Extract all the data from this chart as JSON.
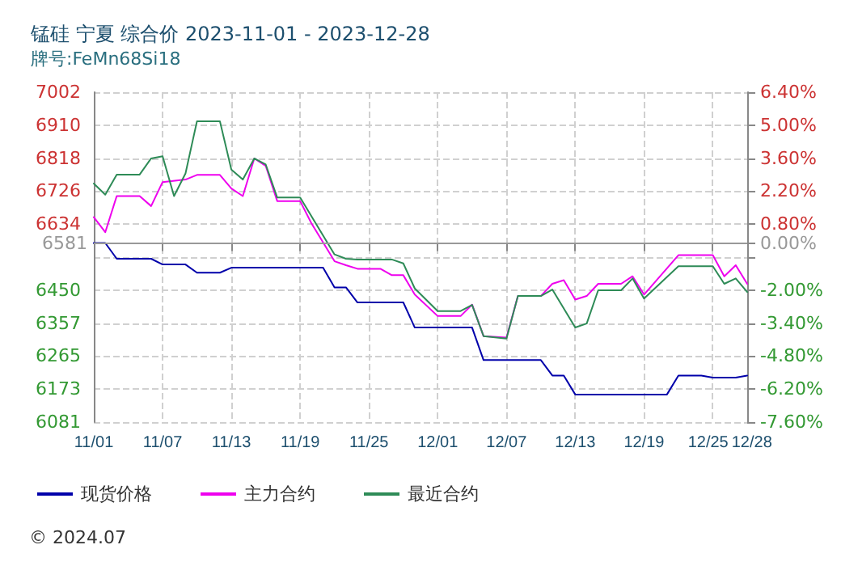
{
  "chart_data": {
    "type": "line",
    "title": "锰硅 宁夏 综合价 2023-11-01 - 2023-12-28",
    "subtitle": "牌号:FeMn68Si18",
    "annotations": [
      "© 2024.07"
    ],
    "xlim": [
      "2023-11-01",
      "2023-12-28"
    ],
    "xticks": [
      {
        "value": "2023-11-01",
        "label": "11/01"
      },
      {
        "value": "2023-11-07",
        "label": "11/07"
      },
      {
        "value": "2023-11-13",
        "label": "11/13"
      },
      {
        "value": "2023-11-19",
        "label": "11/19"
      },
      {
        "value": "2023-11-25",
        "label": "11/25"
      },
      {
        "value": "2023-12-01",
        "label": "12/01"
      },
      {
        "value": "2023-12-07",
        "label": "12/07"
      },
      {
        "value": "2023-12-13",
        "label": "12/13"
      },
      {
        "value": "2023-12-19",
        "label": "12/19"
      },
      {
        "value": "2023-12-25",
        "label": "12/25"
      },
      {
        "value": "2023-12-28",
        "label": "12/28"
      }
    ],
    "ylim": [
      6081,
      7002
    ],
    "yticks": [
      7002,
      6910,
      6818,
      6726,
      6634,
      {
        "value": 6542,
        "label": null
      },
      6450,
      6357,
      6265,
      6173,
      6081
    ],
    "y2lim": [
      -7.6,
      6.4
    ],
    "y2ticks": [
      {
        "value": 6.4,
        "label": "6.40%"
      },
      {
        "value": 5,
        "label": "5.00%"
      },
      {
        "value": 3.6,
        "label": "3.60%"
      },
      {
        "value": 2.2,
        "label": "2.20%"
      },
      {
        "value": 0.8,
        "label": "0.80%"
      },
      {
        "value": 0,
        "label": "0.00%"
      },
      {
        "value": -0.6,
        "label": null
      },
      {
        "value": -2,
        "label": "-2.00%"
      },
      {
        "value": -3.4,
        "label": "-3.40%"
      },
      {
        "value": -4.8,
        "label": "-4.80%"
      },
      {
        "value": -6.2,
        "label": "-6.20%"
      },
      {
        "value": -7.6,
        "label": "-7.60%"
      }
    ],
    "ref_lines": [
      {
        "axis": "y",
        "value": 6581,
        "label": "6581",
        "color": "#999999"
      }
    ],
    "grid": true,
    "legend": "bottom",
    "marker": "none",
    "line_style": "solid",
    "series": [
      {
        "name": "现货价格",
        "color": "#0000aa",
        "x": [
          "2023-11-01",
          "2023-11-02",
          "2023-11-03",
          "2023-11-06",
          "2023-11-07",
          "2023-11-09",
          "2023-11-10",
          "2023-11-12",
          "2023-11-13",
          "2023-11-21",
          "2023-11-22",
          "2023-11-23",
          "2023-11-24",
          "2023-11-28",
          "2023-11-29",
          "2023-12-04",
          "2023-12-05",
          "2023-12-10",
          "2023-12-11",
          "2023-12-12",
          "2023-12-13",
          "2023-12-21",
          "2023-12-22",
          "2023-12-24",
          "2023-12-25",
          "2023-12-27",
          "2023-12-28"
        ],
        "values": [
          6581,
          6581,
          6537,
          6537,
          6521,
          6521,
          6498,
          6498,
          6512,
          6512,
          6457,
          6457,
          6415,
          6415,
          6345,
          6345,
          6254,
          6254,
          6211,
          6211,
          6158,
          6158,
          6211,
          6211,
          6205,
          6205,
          6211
        ]
      },
      {
        "name": "主力合约",
        "color": "#ee00ee",
        "x": [
          "2023-11-01",
          "2023-11-02",
          "2023-11-03",
          "2023-11-05",
          "2023-11-06",
          "2023-11-07",
          "2023-11-09",
          "2023-11-10",
          "2023-11-12",
          "2023-11-13",
          "2023-11-14",
          "2023-11-15",
          "2023-11-16",
          "2023-11-17",
          "2023-11-19",
          "2023-11-20",
          "2023-11-22",
          "2023-11-23",
          "2023-11-24",
          "2023-11-26",
          "2023-11-27",
          "2023-11-28",
          "2023-11-29",
          "2023-12-01",
          "2023-12-03",
          "2023-12-04",
          "2023-12-05",
          "2023-12-07",
          "2023-12-08",
          "2023-12-10",
          "2023-12-11",
          "2023-12-12",
          "2023-12-13",
          "2023-12-14",
          "2023-12-15",
          "2023-12-17",
          "2023-12-18",
          "2023-12-19",
          "2023-12-22",
          "2023-12-25",
          "2023-12-26",
          "2023-12-27",
          "2023-12-28"
        ],
        "values": [
          6653,
          6611,
          6712,
          6712,
          6684,
          6751,
          6758,
          6771,
          6771,
          6733,
          6712,
          6817,
          6796,
          6698,
          6698,
          6635,
          6530,
          6519,
          6509,
          6509,
          6491,
          6491,
          6437,
          6377,
          6377,
          6409,
          6321,
          6317,
          6433,
          6433,
          6467,
          6477,
          6423,
          6433,
          6467,
          6467,
          6488,
          6437,
          6547,
          6547,
          6488,
          6519,
          6467
        ]
      },
      {
        "name": "最近合约",
        "color": "#2e8b57",
        "x": [
          "2023-11-01",
          "2023-11-02",
          "2023-11-03",
          "2023-11-05",
          "2023-11-06",
          "2023-11-07",
          "2023-11-08",
          "2023-11-09",
          "2023-11-10",
          "2023-11-12",
          "2023-11-13",
          "2023-11-14",
          "2023-11-15",
          "2023-11-16",
          "2023-11-17",
          "2023-11-19",
          "2023-11-22",
          "2023-11-23",
          "2023-11-24",
          "2023-11-27",
          "2023-11-28",
          "2023-11-29",
          "2023-12-01",
          "2023-12-03",
          "2023-12-04",
          "2023-12-05",
          "2023-12-07",
          "2023-12-08",
          "2023-12-10",
          "2023-12-11",
          "2023-12-13",
          "2023-12-14",
          "2023-12-15",
          "2023-12-17",
          "2023-12-18",
          "2023-12-19",
          "2023-12-22",
          "2023-12-25",
          "2023-12-26",
          "2023-12-27",
          "2023-12-28"
        ],
        "values": [
          6747,
          6716,
          6772,
          6772,
          6817,
          6823,
          6712,
          6775,
          6921,
          6921,
          6786,
          6758,
          6817,
          6800,
          6708,
          6708,
          6549,
          6537,
          6535,
          6535,
          6524,
          6454,
          6391,
          6391,
          6408,
          6321,
          6314,
          6433,
          6433,
          6451,
          6345,
          6356,
          6449,
          6449,
          6482,
          6426,
          6516,
          6516,
          6467,
          6482,
          6444
        ]
      }
    ]
  }
}
